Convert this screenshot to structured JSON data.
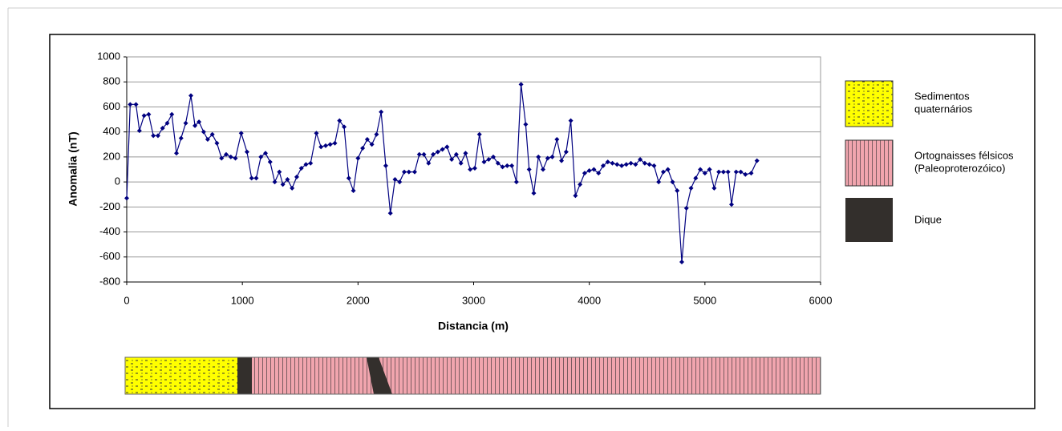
{
  "chart_data": {
    "type": "line",
    "x_label": "Distancia (m)",
    "y_label": "Anomalia (nT)",
    "xlim": [
      0,
      6000
    ],
    "xticks": [
      0,
      1000,
      2000,
      3000,
      4000,
      5000,
      6000
    ],
    "ylim": [
      -800,
      1000
    ],
    "yticks": [
      -800,
      -600,
      -400,
      -200,
      0,
      200,
      400,
      600,
      800,
      1000
    ],
    "grid": true,
    "series": [
      {
        "color": "#000080",
        "x": [
          0,
          30,
          80,
          110,
          150,
          190,
          230,
          270,
          310,
          350,
          390,
          430,
          470,
          510,
          555,
          590,
          625,
          665,
          700,
          740,
          780,
          820,
          860,
          900,
          940,
          990,
          1040,
          1080,
          1120,
          1160,
          1200,
          1240,
          1280,
          1320,
          1350,
          1390,
          1430,
          1470,
          1510,
          1550,
          1590,
          1640,
          1680,
          1720,
          1760,
          1800,
          1840,
          1880,
          1920,
          1960,
          2000,
          2040,
          2080,
          2120,
          2160,
          2200,
          2240,
          2280,
          2320,
          2360,
          2400,
          2440,
          2490,
          2530,
          2570,
          2610,
          2650,
          2690,
          2730,
          2770,
          2810,
          2850,
          2890,
          2930,
          2970,
          3010,
          3050,
          3090,
          3130,
          3170,
          3210,
          3250,
          3290,
          3330,
          3370,
          3410,
          3450,
          3480,
          3520,
          3560,
          3600,
          3640,
          3680,
          3720,
          3760,
          3800,
          3840,
          3880,
          3920,
          3960,
          4000,
          4040,
          4080,
          4120,
          4160,
          4200,
          4240,
          4280,
          4320,
          4360,
          4400,
          4440,
          4480,
          4520,
          4560,
          4600,
          4640,
          4680,
          4720,
          4760,
          4800,
          4840,
          4880,
          4920,
          4960,
          5000,
          5040,
          5080,
          5120,
          5160,
          5200,
          5230,
          5270,
          5310,
          5350,
          5400,
          5450
        ],
        "values": [
          -130,
          620,
          620,
          410,
          530,
          540,
          370,
          370,
          430,
          470,
          540,
          230,
          350,
          470,
          690,
          450,
          480,
          400,
          340,
          380,
          310,
          190,
          220,
          200,
          190,
          390,
          240,
          30,
          30,
          200,
          230,
          160,
          0,
          80,
          -20,
          20,
          -50,
          40,
          110,
          140,
          150,
          390,
          280,
          290,
          300,
          310,
          490,
          440,
          30,
          -70,
          190,
          270,
          340,
          300,
          380,
          560,
          130,
          -250,
          20,
          0,
          80,
          80,
          80,
          220,
          220,
          150,
          220,
          240,
          260,
          280,
          180,
          220,
          150,
          230,
          100,
          110,
          380,
          160,
          180,
          200,
          150,
          120,
          130,
          130,
          0,
          780,
          460,
          100,
          -90,
          200,
          100,
          190,
          200,
          340,
          170,
          240,
          490,
          -110,
          -20,
          70,
          90,
          100,
          70,
          130,
          160,
          150,
          140,
          130,
          140,
          150,
          140,
          180,
          150,
          140,
          130,
          0,
          80,
          100,
          0,
          -70,
          -640,
          -210,
          -50,
          30,
          100,
          70,
          100,
          -50,
          80,
          80,
          80,
          -180,
          80,
          80,
          60,
          70,
          170
        ]
      }
    ],
    "legend": [
      {
        "lines": [
          "Sedimentos",
          "quaternários"
        ]
      },
      {
        "lines": [
          "Ortognaisses félsicos",
          "(Paleoproterozóico)"
        ]
      },
      {
        "lines": [
          "Dique"
        ]
      }
    ]
  }
}
